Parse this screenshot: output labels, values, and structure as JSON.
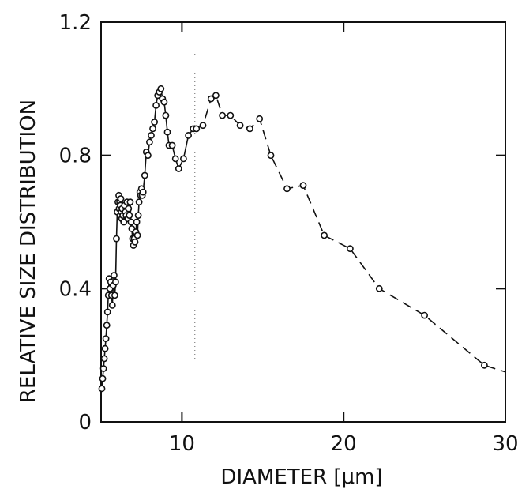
{
  "chart_data": {
    "type": "scatter",
    "title": "",
    "xlabel": "DIAMETER [μm]",
    "ylabel": "RELATIVE SIZE DISTRIBUTION",
    "xlim": [
      5,
      30
    ],
    "ylim": [
      0,
      1.2
    ],
    "x_ticks": [
      10,
      20,
      30
    ],
    "x_tick_labels": [
      "10",
      "20",
      "30"
    ],
    "y_ticks": [
      0,
      0.4,
      0.8,
      1.2
    ],
    "y_tick_labels": [
      "0",
      "0.4",
      "0.8",
      "1.2"
    ],
    "grid": false,
    "legend": "none",
    "reference_line_x": 10.8,
    "series": [
      {
        "style": "solid",
        "x": [
          5.05,
          5.1,
          5.15,
          5.2,
          5.25,
          5.3,
          5.35,
          5.4,
          5.45,
          5.5,
          5.55,
          5.6,
          5.65,
          5.7,
          5.75,
          5.8,
          5.85,
          5.9,
          5.95,
          6.0,
          6.05,
          6.1,
          6.12,
          6.15,
          6.18,
          6.2,
          6.22,
          6.25,
          6.28,
          6.3,
          6.35,
          6.4,
          6.45,
          6.5,
          6.55,
          6.6,
          6.65,
          6.7,
          6.75,
          6.8,
          6.85,
          6.9,
          6.95,
          7.0,
          7.05,
          7.1,
          7.15,
          7.2,
          7.25,
          7.3,
          7.35,
          7.4,
          7.45,
          7.5,
          7.55,
          7.6,
          7.7,
          7.8,
          7.9,
          8.0,
          8.1,
          8.2,
          8.3,
          8.4,
          8.5,
          8.6,
          8.7,
          8.8,
          8.9,
          9.0,
          9.1,
          9.2,
          9.4,
          9.6,
          9.8,
          10.1,
          10.4,
          10.7,
          10.9
        ],
        "y": [
          0.1,
          0.13,
          0.16,
          0.19,
          0.22,
          0.25,
          0.29,
          0.33,
          0.38,
          0.43,
          0.4,
          0.42,
          0.38,
          0.35,
          0.41,
          0.44,
          0.38,
          0.42,
          0.55,
          0.63,
          0.66,
          0.68,
          0.64,
          0.66,
          0.62,
          0.65,
          0.67,
          0.63,
          0.61,
          0.64,
          0.62,
          0.6,
          0.65,
          0.63,
          0.62,
          0.66,
          0.61,
          0.64,
          0.62,
          0.66,
          0.6,
          0.58,
          0.55,
          0.53,
          0.55,
          0.54,
          0.57,
          0.6,
          0.56,
          0.62,
          0.66,
          0.69,
          0.68,
          0.7,
          0.68,
          0.69,
          0.74,
          0.81,
          0.8,
          0.84,
          0.86,
          0.88,
          0.9,
          0.95,
          0.98,
          0.99,
          1.0,
          0.97,
          0.96,
          0.92,
          0.87,
          0.83,
          0.83,
          0.79,
          0.76,
          0.79,
          0.86,
          0.88,
          0.88
        ]
      },
      {
        "style": "dashed",
        "x": [
          10.9,
          11.3,
          11.8,
          12.1,
          12.5,
          13.0,
          13.6,
          14.2,
          14.8,
          15.5,
          16.5,
          17.5,
          18.8,
          20.4,
          22.2,
          25.0,
          28.7,
          30.0
        ],
        "y": [
          0.88,
          0.89,
          0.97,
          0.98,
          0.92,
          0.92,
          0.89,
          0.88,
          0.91,
          0.8,
          0.7,
          0.71,
          0.56,
          0.52,
          0.4,
          0.32,
          0.17,
          0.15
        ]
      }
    ]
  }
}
